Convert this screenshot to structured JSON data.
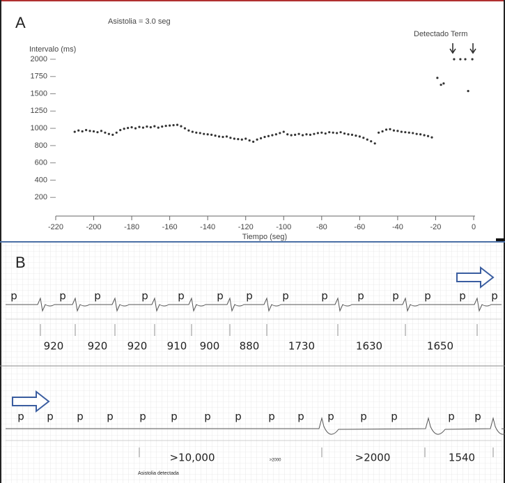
{
  "chart_data": {
    "type": "scatter",
    "panel_label": "A",
    "annotation": "Asistolia = 3.0 seg",
    "detection_label": "Detectado Term",
    "y_label": "Intervalo (ms)",
    "x_label": "Tiempo (seg)",
    "color": "#333333",
    "xlim": [
      -220,
      0
    ],
    "xticks": [
      -220,
      -200,
      -180,
      -160,
      -140,
      -120,
      -100,
      -80,
      -60,
      -40,
      -20,
      0
    ],
    "ylim": [
      0,
      2000
    ],
    "yticks": [
      200,
      400,
      600,
      800,
      1000,
      1250,
      1500,
      1750,
      2000
    ],
    "x": [
      -210,
      -208,
      -206,
      -204,
      -202,
      -200,
      -198,
      -196,
      -194,
      -192,
      -190,
      -188,
      -186,
      -184,
      -182,
      -180,
      -178,
      -176,
      -174,
      -172,
      -170,
      -168,
      -166,
      -164,
      -162,
      -160,
      -158,
      -156,
      -154,
      -152,
      -150,
      -148,
      -146,
      -144,
      -142,
      -140,
      -138,
      -136,
      -134,
      -132,
      -130,
      -128,
      -126,
      -124,
      -122,
      -120,
      -118,
      -116,
      -114,
      -112,
      -110,
      -108,
      -106,
      -104,
      -102,
      -100,
      -98,
      -96,
      -94,
      -92,
      -90,
      -88,
      -86,
      -84,
      -82,
      -80,
      -78,
      -76,
      -74,
      -72,
      -70,
      -68,
      -66,
      -64,
      -62,
      -60,
      -58,
      -56,
      -54,
      -52,
      -50,
      -48,
      -46,
      -44,
      -42,
      -40,
      -38,
      -36,
      -34,
      -32,
      -30,
      -28,
      -26,
      -24,
      -22,
      -19.1,
      -17.2,
      -15.8,
      -10.3,
      -7,
      -4.4,
      -2.9,
      -0.7
    ],
    "values": [
      960,
      975,
      965,
      980,
      970,
      965,
      955,
      970,
      950,
      935,
      925,
      950,
      980,
      995,
      1005,
      1015,
      1000,
      1020,
      1010,
      1025,
      1015,
      1030,
      1010,
      1025,
      1035,
      1040,
      1045,
      1050,
      1030,
      1000,
      975,
      960,
      950,
      945,
      935,
      930,
      925,
      915,
      905,
      900,
      905,
      890,
      880,
      875,
      870,
      880,
      860,
      845,
      870,
      885,
      900,
      910,
      920,
      930,
      945,
      960,
      930,
      920,
      925,
      935,
      920,
      930,
      925,
      935,
      945,
      950,
      940,
      955,
      950,
      945,
      955,
      940,
      930,
      925,
      915,
      905,
      890,
      870,
      850,
      825,
      950,
      965,
      985,
      990,
      975,
      970,
      960,
      955,
      950,
      945,
      935,
      930,
      920,
      910,
      895,
      1730,
      1630,
      1650,
      2000,
      2000,
      2000,
      1540,
      2000
    ]
  },
  "panel_b": {
    "panel_label": "B",
    "top_p": [
      "p",
      "p",
      "p",
      "p",
      "p",
      "p",
      "p",
      "p",
      "p",
      "p",
      "p",
      "p",
      "p",
      "p"
    ],
    "top_intervals": [
      "920",
      "920",
      "920",
      "910",
      "900",
      "880",
      "1730",
      "1630",
      "1650"
    ],
    "bottom_p": [
      "p",
      "p",
      "p",
      "p",
      "p",
      "p",
      "p",
      "p",
      "p",
      "p",
      "p",
      "p",
      "p",
      "p",
      "p"
    ],
    "bottom_intervals": [
      ">10,000",
      ">2000",
      "1540"
    ],
    "small_interval": ">2000",
    "event_label": "Asistolia detectada"
  }
}
